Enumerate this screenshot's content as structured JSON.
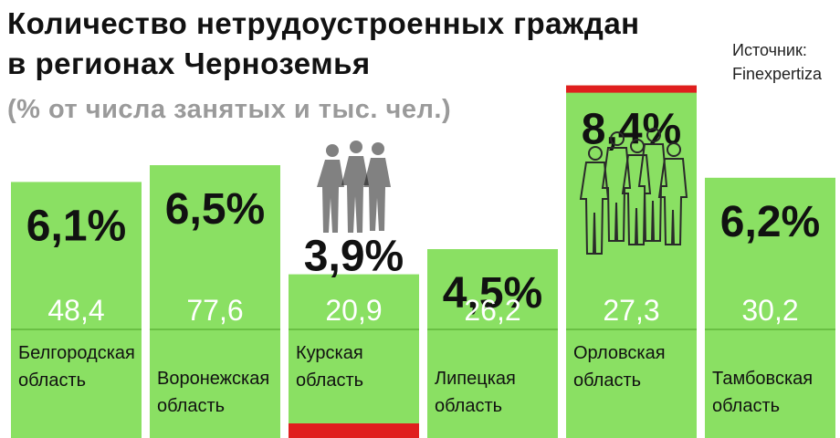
{
  "header": {
    "title_line1": "Количество нетрудоустроенных граждан",
    "title_line2": "в регионах Черноземья",
    "subtitle": "(% от числа занятых и тыс. чел.)",
    "source_label": "Источник:",
    "source_name": "Finexpertiza"
  },
  "colors": {
    "bar": "#8ae063",
    "highlight_max": "#e01e1e",
    "highlight_min": "#e01e1e"
  },
  "chart_data": {
    "type": "bar",
    "title": "Количество нетрудоустроенных граждан в регионах Черноземья",
    "subtitle": "(% от числа занятых и тыс. чел.)",
    "ylim": [
      0,
      10
    ],
    "categories": [
      "Белгородская область",
      "Воронежская область",
      "Курская область",
      "Липецкая область",
      "Орловская область",
      "Тамбовская область"
    ],
    "category_lines": [
      [
        "Белгородская",
        "область"
      ],
      [
        "Воронежская",
        "область"
      ],
      [
        "Курская",
        "область"
      ],
      [
        "Липецкая",
        "область"
      ],
      [
        "Орловская",
        "область"
      ],
      [
        "Тамбовская",
        "область"
      ]
    ],
    "series": [
      {
        "name": "% от числа занятых",
        "values": [
          6.1,
          6.5,
          3.9,
          4.5,
          8.4,
          6.2
        ],
        "labels": [
          "6,1%",
          "6,5%",
          "3,9%",
          "4,5%",
          "8,4%",
          "6,2%"
        ]
      },
      {
        "name": "тыс. чел.",
        "values": [
          48.4,
          77.6,
          20.9,
          26.2,
          27.3,
          30.2
        ],
        "labels": [
          "48,4",
          "77,6",
          "20,9",
          "26,2",
          "27,3",
          "30,2"
        ]
      }
    ],
    "highlight_max_index": 4,
    "highlight_min_index": 2,
    "source": "Finexpertiza"
  }
}
